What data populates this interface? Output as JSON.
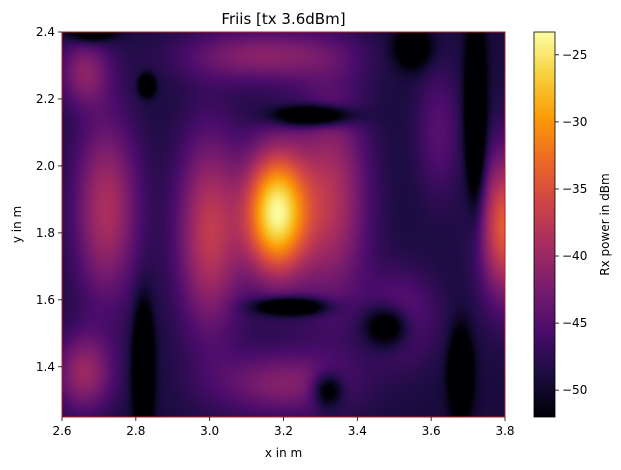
{
  "chart_data": {
    "type": "heatmap",
    "title": "Friis [tx 3.6dBm]",
    "xlabel": "x in m",
    "ylabel": "y in m",
    "xlim": [
      2.6,
      3.8
    ],
    "ylim": [
      1.25,
      2.4
    ],
    "xticks": [
      2.6,
      2.8,
      3.0,
      3.2,
      3.4,
      3.6,
      3.8
    ],
    "xtick_labels": [
      "2.6",
      "2.8",
      "3.0",
      "3.2",
      "3.4",
      "3.6",
      "3.8"
    ],
    "yticks": [
      1.4,
      1.6,
      1.8,
      2.0,
      2.2,
      2.4
    ],
    "ytick_labels": [
      "1.4",
      "1.6",
      "1.8",
      "2.0",
      "2.2",
      "2.4"
    ],
    "colorbar": {
      "label": "Rx power in dBm",
      "range": [
        -52,
        -23.3
      ],
      "ticks": [
        -50,
        -45,
        -40,
        -35,
        -30,
        -25
      ],
      "tick_labels": [
        "−50",
        "−45",
        "−40",
        "−35",
        "−30",
        "−25"
      ],
      "colormap": "inferno"
    },
    "field_features": {
      "peak": {
        "x": 3.18,
        "y": 1.86,
        "value": -23.5
      },
      "right_edge_hotspot": {
        "x": 3.8,
        "y": 1.82,
        "value": -31
      },
      "left_lobe": {
        "x": 2.72,
        "y": 1.85,
        "value": -34
      },
      "upper_left_lobe": {
        "x": 2.68,
        "y": 2.3,
        "value": -38
      },
      "lower_left_lobe": {
        "x": 2.66,
        "y": 1.36,
        "value": -36
      }
    },
    "grid": false
  },
  "colors": {
    "frame": "#b22222",
    "colormap_stops": [
      "#000004",
      "#1b0c41",
      "#4a0c6b",
      "#781c6d",
      "#a52c60",
      "#cf4446",
      "#ed6925",
      "#fb9b06",
      "#f7d13d",
      "#fcffa4"
    ]
  }
}
